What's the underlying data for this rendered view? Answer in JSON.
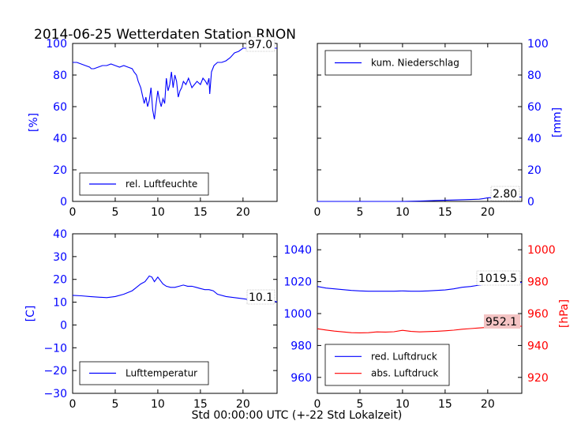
{
  "colors": {
    "left_axis": "#0000ff",
    "right_axis_pressure": "#ff0000",
    "humidity": "#0000ff",
    "precip": "#0000ff",
    "temperature": "#0000ff",
    "pressure_red": "#0000ff",
    "pressure_abs": "#ff0000",
    "last_value_bg": "#f4c4c4"
  },
  "chart_data": [
    {
      "type": "line",
      "title": "2014-06-25 Wetterdaten Station RNON",
      "ylabel": "[%]",
      "xlim": [
        0,
        24
      ],
      "ylim": [
        0,
        100
      ],
      "xticks": [
        "0",
        "5",
        "10",
        "15",
        "20"
      ],
      "yticks": [
        "0",
        "20",
        "40",
        "60",
        "80",
        "100"
      ],
      "legend_position": "lower-left",
      "last_value_label": "97.0",
      "series": [
        {
          "name": "rel. Luftfeuchte",
          "x": [
            0,
            0.5,
            1,
            1.5,
            2,
            2.2,
            2.5,
            3,
            3.5,
            4,
            4.5,
            5,
            5.5,
            6,
            6.5,
            7,
            7.2,
            7.5,
            7.7,
            8,
            8.2,
            8.4,
            8.6,
            8.8,
            9,
            9.2,
            9.4,
            9.6,
            9.8,
            10,
            10.2,
            10.4,
            10.6,
            10.8,
            11,
            11.2,
            11.4,
            11.6,
            11.8,
            12,
            12.2,
            12.4,
            12.6,
            12.8,
            13,
            13.3,
            13.6,
            14,
            14.3,
            14.6,
            15,
            15.3,
            15.6,
            15.8,
            16,
            16.1,
            16.3,
            16.6,
            17,
            17.5,
            18,
            18.5,
            19,
            19.5,
            20,
            20.5,
            21,
            21.5,
            22,
            22.5,
            23,
            23.5,
            24
          ],
          "values": [
            88,
            88,
            87,
            86,
            85,
            84,
            84,
            85,
            86,
            86,
            87,
            86,
            85,
            86,
            85,
            84,
            82,
            80,
            76,
            72,
            67,
            62,
            66,
            60,
            64,
            72,
            58,
            52,
            62,
            70,
            64,
            60,
            65,
            62,
            78,
            70,
            74,
            82,
            72,
            80,
            76,
            66,
            70,
            72,
            76,
            74,
            78,
            72,
            74,
            76,
            74,
            78,
            76,
            74,
            78,
            68,
            82,
            86,
            88,
            88,
            89,
            91,
            94,
            95,
            97,
            97,
            97,
            98,
            97,
            98,
            97,
            97,
            97
          ]
        }
      ]
    },
    {
      "type": "line",
      "ylabel": "[mm]",
      "xlim": [
        0,
        24
      ],
      "ylim": [
        0,
        100
      ],
      "xticks": [
        "0",
        "5",
        "10",
        "15",
        "20"
      ],
      "yticks": [
        "0",
        "20",
        "40",
        "60",
        "80",
        "100"
      ],
      "legend_position": "upper-left",
      "last_value_label": "2.80",
      "series": [
        {
          "name": "kum. Niederschlag",
          "x": [
            0,
            10,
            12,
            14,
            16,
            18,
            19,
            19.5,
            20,
            21,
            22,
            23,
            24
          ],
          "values": [
            0,
            0,
            0.2,
            0.6,
            0.9,
            1.2,
            1.4,
            1.8,
            2.3,
            2.6,
            2.7,
            2.8,
            2.8
          ]
        }
      ]
    },
    {
      "type": "line",
      "ylabel": "[C]",
      "xlabel": "Std 00:00:00 UTC (+-22 Std Lokalzeit)",
      "xlim": [
        0,
        24
      ],
      "ylim": [
        -30,
        40
      ],
      "xticks": [
        "0",
        "5",
        "10",
        "15",
        "20"
      ],
      "yticks": [
        "−30",
        "−20",
        "−10",
        "0",
        "10",
        "20",
        "30",
        "40"
      ],
      "legend_position": "lower-left",
      "last_value_label": "10.1",
      "series": [
        {
          "name": "Lufttemperatur",
          "x": [
            0,
            1,
            2,
            3,
            4,
            5,
            6,
            7,
            7.5,
            8,
            8.5,
            9,
            9.3,
            9.6,
            10,
            10.3,
            10.6,
            11,
            11.5,
            12,
            12.5,
            13,
            13.5,
            14,
            14.5,
            15,
            15.5,
            16,
            16.5,
            17,
            18,
            19,
            20,
            21,
            22,
            23,
            23.5,
            24
          ],
          "values": [
            13,
            12.8,
            12.5,
            12.2,
            12,
            12.5,
            13.5,
            15,
            16.5,
            18,
            19,
            21.5,
            21,
            19,
            21,
            19.5,
            18,
            17,
            16.5,
            16.5,
            17,
            17.5,
            17,
            17,
            16.5,
            16,
            15.5,
            15.5,
            15,
            13.5,
            12.5,
            12,
            11.5,
            11,
            11,
            10.8,
            10.5,
            10.1
          ]
        }
      ]
    },
    {
      "type": "line",
      "ylabel": "[hPa]",
      "xlim": [
        0,
        24
      ],
      "ylim": [
        950,
        1050
      ],
      "right_ylim": [
        910,
        1010
      ],
      "xticks": [
        "0",
        "5",
        "10",
        "15",
        "20"
      ],
      "yticks": [
        "960",
        "980",
        "1000",
        "1020",
        "1040"
      ],
      "right_yticks": [
        "920",
        "940",
        "960",
        "980",
        "1000"
      ],
      "legend_position": "lower-left",
      "last_value_labels": [
        "1019.5",
        "952.1"
      ],
      "series": [
        {
          "name": "red. Luftdruck",
          "axis": "left",
          "x": [
            0,
            1,
            2,
            3,
            4,
            5,
            6,
            7,
            8,
            9,
            10,
            11,
            12,
            13,
            14,
            15,
            16,
            17,
            18,
            19,
            20,
            21,
            22,
            23,
            24
          ],
          "values": [
            1017,
            1016,
            1015.5,
            1015,
            1014.5,
            1014.2,
            1014,
            1014,
            1014,
            1014,
            1014.2,
            1014,
            1014,
            1014.2,
            1014.5,
            1014.8,
            1015.5,
            1016.5,
            1017,
            1017.8,
            1018.5,
            1019,
            1019.2,
            1019.4,
            1019.5
          ]
        },
        {
          "name": "abs. Luftdruck",
          "axis": "right",
          "x": [
            0,
            1,
            2,
            3,
            4,
            5,
            6,
            7,
            8,
            9,
            10,
            11,
            12,
            13,
            14,
            15,
            16,
            17,
            18,
            19,
            20,
            21,
            22,
            23,
            24
          ],
          "values": [
            950.5,
            949.7,
            949,
            948.5,
            948,
            947.9,
            948,
            948.5,
            948.4,
            948.6,
            949.5,
            948.8,
            948.5,
            948.7,
            948.9,
            949.2,
            949.6,
            950.2,
            950.6,
            951,
            951.4,
            951.7,
            951.9,
            952,
            952.1
          ]
        }
      ]
    }
  ]
}
